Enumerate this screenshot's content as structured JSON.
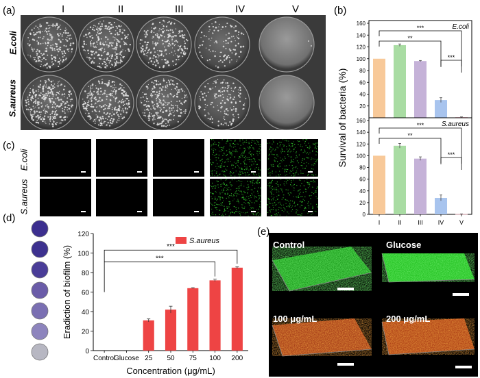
{
  "panels": {
    "a": {
      "label": "(a)",
      "columns": [
        "I",
        "II",
        "III",
        "IV",
        "V"
      ],
      "rows": [
        "E.coli",
        "S.aureus"
      ]
    },
    "b": {
      "label": "(b)"
    },
    "c": {
      "label": "(c)",
      "rows": [
        "E.coli",
        "S.aureus"
      ]
    },
    "d": {
      "label": "(d)"
    },
    "e": {
      "label": "(e)",
      "tiles": [
        "Control",
        "Glucose",
        "100 μg/mL",
        "200 μg/mL"
      ]
    }
  },
  "colors": {
    "bar_I": "#f8c999",
    "bar_II": "#a9dca3",
    "bar_III": "#c5b2d8",
    "bar_IV": "#a8c4ee",
    "bar_V": "#f6b0bd",
    "bar_d": "#ee4444",
    "green_fluor": "#22c41f",
    "red_fluor": "#c8461a"
  },
  "chart_data": [
    {
      "type": "bar",
      "title": "E.coli",
      "ylabel": "Survival of bacteria (%)",
      "categories": [
        "I",
        "II",
        "III",
        "IV",
        "V"
      ],
      "values": [
        100,
        123,
        96,
        30,
        1
      ],
      "errors": [
        0,
        2,
        1,
        4,
        0.5
      ],
      "ylim": [
        0,
        160
      ],
      "yticks": [
        0,
        20,
        40,
        60,
        80,
        100,
        120,
        140,
        160
      ],
      "significance": [
        {
          "from": "I",
          "to": "V",
          "label": "***"
        },
        {
          "from": "I",
          "to": "IV",
          "label": "**"
        },
        {
          "from": "IV",
          "to": "V",
          "label": "***"
        }
      ]
    },
    {
      "type": "bar",
      "title": "S.aureus",
      "categories": [
        "I",
        "II",
        "III",
        "IV",
        "V"
      ],
      "values": [
        100,
        117,
        95,
        28,
        0.5
      ],
      "errors": [
        0,
        4,
        3,
        5,
        0.3
      ],
      "ylim": [
        0,
        160
      ],
      "yticks": [
        0,
        20,
        40,
        60,
        80,
        100,
        120,
        140,
        160
      ],
      "significance": [
        {
          "from": "I",
          "to": "V",
          "label": "***"
        },
        {
          "from": "I",
          "to": "IV",
          "label": "**"
        },
        {
          "from": "IV",
          "to": "V",
          "label": "***"
        }
      ]
    },
    {
      "type": "bar",
      "xlabel": "Concentration (μg/mL)",
      "ylabel": "Eradiction of biofilm (%)",
      "categories": [
        "Control",
        "Glucose",
        "25",
        "50",
        "75",
        "100",
        "200"
      ],
      "legend": "S.aureus",
      "values": [
        0,
        0,
        31,
        42,
        64,
        72,
        85
      ],
      "errors": [
        0,
        0,
        1.5,
        3.5,
        0.5,
        1.2,
        0.8
      ],
      "ylim": [
        0,
        120
      ],
      "yticks": [
        0,
        20,
        40,
        60,
        80,
        100,
        120
      ],
      "significance": [
        {
          "from": "Control",
          "to": "200",
          "label": "***"
        },
        {
          "from": "Control",
          "to": "100",
          "label": "***"
        }
      ]
    }
  ]
}
